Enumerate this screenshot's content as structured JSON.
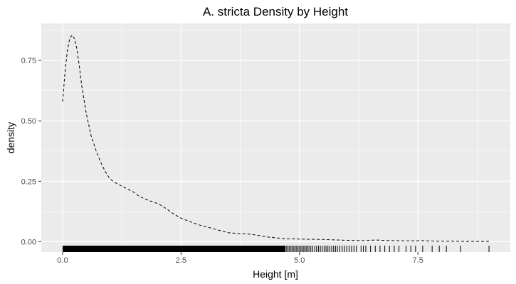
{
  "chart_data": {
    "type": "line",
    "title": "A. stricta Density by Height",
    "xlabel": "Height [m]",
    "ylabel": "density",
    "xlim": [
      -0.45,
      9.45
    ],
    "ylim": [
      -0.043,
      0.903
    ],
    "x_ticks": [
      0.0,
      2.5,
      5.0,
      7.5
    ],
    "x_tick_labels": [
      "0.0",
      "2.5",
      "5.0",
      "7.5"
    ],
    "y_ticks": [
      0.0,
      0.25,
      0.5,
      0.75
    ],
    "y_tick_labels": [
      "0.00",
      "0.25",
      "0.50",
      "0.75"
    ],
    "grid": true,
    "line_style": "dashed",
    "line_color": "#000000",
    "panel_color": "#ebebeb",
    "grid_color": "#ffffff",
    "series": [
      {
        "x": [
          0.0,
          0.05,
          0.1,
          0.15,
          0.2,
          0.25,
          0.3,
          0.35,
          0.4,
          0.5,
          0.6,
          0.7,
          0.8,
          0.9,
          1.0,
          1.1,
          1.2,
          1.3,
          1.4,
          1.5,
          1.6,
          1.7,
          1.8,
          1.9,
          2.0,
          2.1,
          2.2,
          2.3,
          2.4,
          2.5,
          2.7,
          2.9,
          3.1,
          3.3,
          3.5,
          3.7,
          3.9,
          4.1,
          4.3,
          4.5,
          4.7,
          4.9,
          5.2,
          5.5,
          5.8,
          6.1,
          6.4,
          6.6,
          6.8,
          7.0,
          7.3,
          7.6,
          7.9,
          8.2,
          8.5,
          8.8,
          9.0
        ],
        "y": [
          0.58,
          0.7,
          0.79,
          0.84,
          0.855,
          0.84,
          0.8,
          0.73,
          0.65,
          0.53,
          0.44,
          0.38,
          0.33,
          0.29,
          0.26,
          0.245,
          0.235,
          0.225,
          0.215,
          0.205,
          0.19,
          0.18,
          0.172,
          0.165,
          0.158,
          0.148,
          0.135,
          0.12,
          0.108,
          0.097,
          0.082,
          0.068,
          0.058,
          0.047,
          0.037,
          0.034,
          0.032,
          0.027,
          0.02,
          0.016,
          0.012,
          0.011,
          0.01,
          0.009,
          0.007,
          0.005,
          0.004,
          0.007,
          0.005,
          0.004,
          0.003,
          0.004,
          0.002,
          0.002,
          0.001,
          0.001,
          0.001
        ]
      }
    ],
    "rug": {
      "dense_range": [
        0.0,
        4.7
      ],
      "ticks": [
        4.72,
        4.75,
        4.78,
        4.81,
        4.84,
        4.87,
        4.9,
        4.93,
        4.96,
        4.99,
        5.02,
        5.05,
        5.08,
        5.11,
        5.14,
        5.17,
        5.2,
        5.24,
        5.28,
        5.32,
        5.36,
        5.4,
        5.44,
        5.48,
        5.52,
        5.56,
        5.6,
        5.64,
        5.68,
        5.72,
        5.76,
        5.8,
        5.85,
        5.9,
        5.95,
        6.0,
        6.05,
        6.1,
        6.15,
        6.2,
        6.3,
        6.35,
        6.4,
        6.5,
        6.6,
        6.7,
        6.8,
        6.9,
        7.0,
        7.1,
        7.25,
        7.35,
        7.45,
        7.6,
        7.8,
        7.95,
        8.1,
        8.4,
        9.0
      ]
    }
  }
}
